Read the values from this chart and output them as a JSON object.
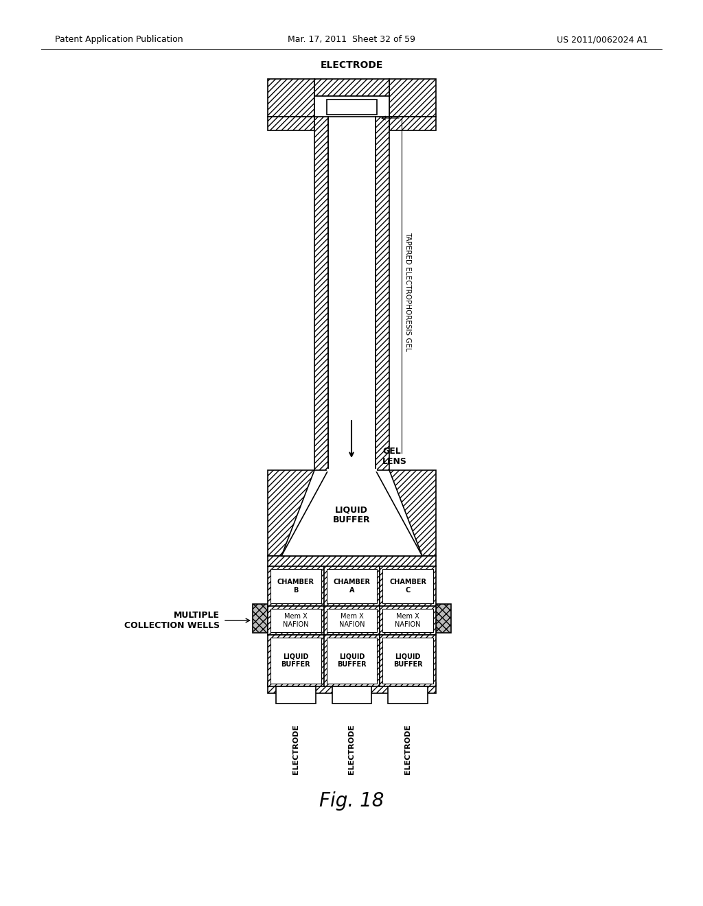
{
  "title": "Fig. 18",
  "header_left": "Patent Application Publication",
  "header_mid": "Mar. 17, 2011  Sheet 32 of 59",
  "header_right": "US 2011/0062024 A1",
  "bg_color": "#ffffff",
  "label_electrode_top": "ELECTRODE",
  "label_gel": "TAPERED ELECTROPHORESIS GEL",
  "label_gel_lens": "GEL\nLENS",
  "label_liquid_buffer_top": "LIQUID\nBUFFER",
  "label_multiple": "MULTIPLE\nCOLLECTION WELLS",
  "label_chamber_b": "CHAMBER\nB",
  "label_chamber_a": "CHAMBER\nA",
  "label_chamber_c": "CHAMBER\nC",
  "label_memx_b": "Mem X\nNAFION",
  "label_memx_a": "Mem X\nNAFION",
  "label_memx_c": "Mem X\nNAFION",
  "label_liquid_b": "LIQUID\nBUFFER",
  "label_liquid_a": "LIQUID\nBUFFER",
  "label_liquid_c": "LIQUID\nBUFFER",
  "label_electrode_b": "ELECTRODE",
  "label_electrode_a": "ELECTRODE",
  "label_electrode_c": "ELECTRODE"
}
